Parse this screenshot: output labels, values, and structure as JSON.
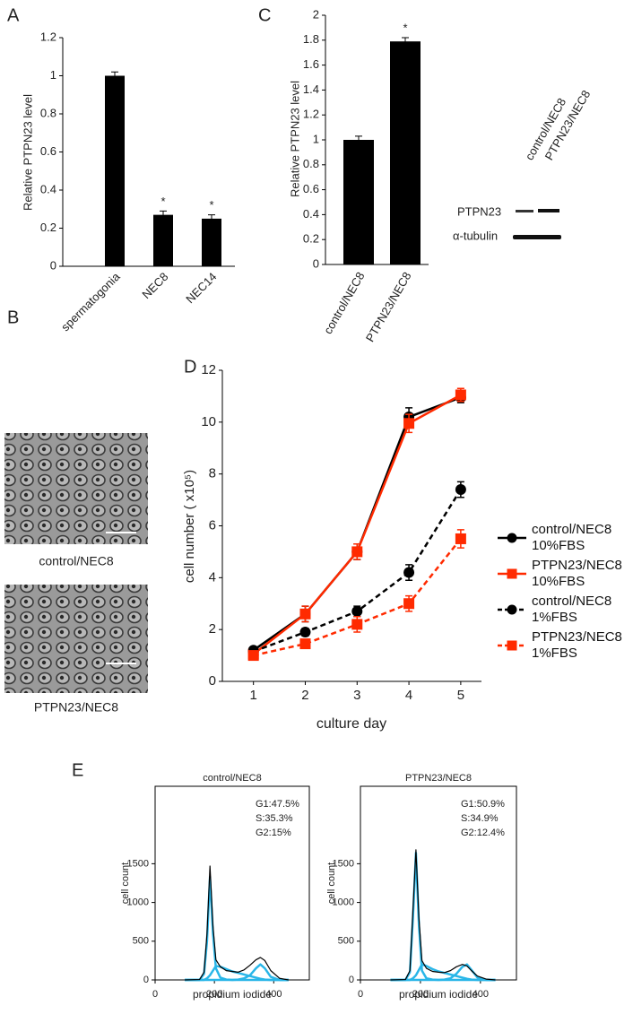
{
  "chart_data": [
    {
      "panel": "A",
      "type": "bar",
      "ylabel": "Relative PTPN23 level",
      "categories": [
        "spermatogonia",
        "NEC8",
        "NEC14"
      ],
      "values": [
        1.0,
        0.27,
        0.25
      ],
      "errors": [
        0.02,
        0.02,
        0.02
      ],
      "annotations": [
        {
          "index": 1,
          "text": "*"
        },
        {
          "index": 2,
          "text": "*"
        }
      ],
      "color": "#000000",
      "ylim": [
        0,
        1.2
      ],
      "yticks": [
        0,
        0.2,
        0.4,
        0.6,
        0.8,
        1,
        1.2
      ]
    },
    {
      "panel": "C",
      "type": "bar",
      "ylabel": "Relative PTPN23 level",
      "categories": [
        "control/NEC8",
        "PTPN23/NEC8"
      ],
      "values": [
        1.0,
        1.79
      ],
      "errors": [
        0.03,
        0.03
      ],
      "annotations": [
        {
          "index": 1,
          "text": "*"
        }
      ],
      "color": "#000000",
      "ylim": [
        0,
        2
      ],
      "yticks": [
        0,
        0.2,
        0.4,
        0.6,
        0.8,
        1,
        1.2,
        1.4,
        1.6,
        1.8,
        2
      ]
    },
    {
      "panel": "D",
      "type": "line",
      "xlabel": "culture day",
      "ylabel": "cell number ( x10⁵)",
      "x": [
        1,
        2,
        3,
        4,
        5
      ],
      "xlim": [
        0.4,
        5.4
      ],
      "xticks": [
        1,
        2,
        3,
        4,
        5
      ],
      "ylim": [
        0,
        12
      ],
      "yticks": [
        0,
        2,
        4,
        6,
        8,
        10,
        12
      ],
      "series": [
        {
          "name": "control/NEC8 10%FBS",
          "color": "#000000",
          "linestyle": "solid",
          "marker": "circle",
          "values": [
            1.2,
            2.6,
            5.0,
            10.2,
            10.95
          ],
          "errors": [
            0.1,
            0.3,
            0.3,
            0.35,
            0.2
          ]
        },
        {
          "name": "PTPN23/NEC8 10%FBS",
          "color": "#ff2a00",
          "linestyle": "solid",
          "marker": "square",
          "values": [
            1.05,
            2.6,
            5.0,
            9.95,
            11.05
          ],
          "errors": [
            0.1,
            0.3,
            0.3,
            0.35,
            0.25
          ]
        },
        {
          "name": "control/NEC8 1%FBS",
          "color": "#000000",
          "linestyle": "dashed",
          "marker": "circle",
          "values": [
            1.15,
            1.9,
            2.7,
            4.2,
            7.4
          ],
          "errors": [
            0.1,
            0.15,
            0.2,
            0.3,
            0.3
          ]
        },
        {
          "name": "PTPN23/NEC8 1%FBS",
          "color": "#ff2a00",
          "linestyle": "dashed",
          "marker": "square",
          "values": [
            1.0,
            1.45,
            2.2,
            3.0,
            5.5
          ],
          "errors": [
            0.1,
            0.15,
            0.3,
            0.3,
            0.35
          ]
        }
      ]
    },
    {
      "panel": "E",
      "type": "line",
      "title": "control/NEC8",
      "xlabel": "propidium iodide",
      "ylabel": "cell count",
      "annotations": [
        "G1:47.5%",
        "S:35.3%",
        "G2:15%"
      ],
      "x": [
        100,
        150,
        165,
        175,
        185,
        195,
        205,
        220,
        240,
        260,
        280,
        300,
        320,
        340,
        355,
        370,
        390,
        420,
        450
      ],
      "xlim": [
        0,
        520
      ],
      "xticks": [
        0,
        200,
        400
      ],
      "ylim": [
        0,
        2500
      ],
      "yticks": [
        0,
        500,
        1000,
        1500
      ],
      "series": [
        {
          "color": "#29b6e8",
          "values": [
            0,
            0,
            80,
            500,
            1330,
            600,
            150,
            30,
            5,
            0,
            0,
            0,
            0,
            0,
            0,
            0,
            0,
            0,
            0
          ]
        },
        {
          "color": "#29b6e8",
          "values": [
            0,
            0,
            0,
            20,
            60,
            120,
            180,
            170,
            140,
            110,
            90,
            70,
            50,
            30,
            15,
            5,
            0,
            0,
            0
          ]
        },
        {
          "color": "#29b6e8",
          "values": [
            0,
            0,
            0,
            0,
            0,
            0,
            0,
            0,
            0,
            0,
            5,
            20,
            60,
            150,
            200,
            150,
            40,
            0,
            0
          ]
        },
        {
          "color": "#000000",
          "values": [
            0,
            5,
            100,
            600,
            1470,
            700,
            260,
            170,
            120,
            110,
            100,
            130,
            190,
            260,
            290,
            250,
            120,
            20,
            0
          ]
        }
      ]
    },
    {
      "panel": "",
      "type": "line",
      "title": "PTPN23/NEC8",
      "xlabel": "propidium iodide",
      "ylabel": "cell count",
      "annotations": [
        "G1:50.9%",
        "S:34.9%",
        "G2:12.4%"
      ],
      "x": [
        100,
        150,
        165,
        175,
        185,
        195,
        205,
        220,
        240,
        260,
        280,
        300,
        320,
        340,
        355,
        370,
        390,
        420,
        450
      ],
      "xlim": [
        0,
        520
      ],
      "xticks": [
        0,
        200,
        400
      ],
      "ylim": [
        0,
        2500
      ],
      "yticks": [
        0,
        500,
        1000,
        1500
      ],
      "series": [
        {
          "color": "#29b6e8",
          "values": [
            0,
            0,
            100,
            800,
            1640,
            700,
            120,
            20,
            5,
            0,
            0,
            0,
            0,
            0,
            0,
            0,
            0,
            0,
            0
          ]
        },
        {
          "color": "#29b6e8",
          "values": [
            0,
            0,
            0,
            20,
            60,
            130,
            200,
            180,
            140,
            110,
            90,
            70,
            50,
            30,
            15,
            5,
            0,
            0,
            0
          ]
        },
        {
          "color": "#29b6e8",
          "values": [
            0,
            0,
            0,
            0,
            0,
            0,
            0,
            0,
            0,
            0,
            5,
            20,
            80,
            170,
            200,
            130,
            30,
            0,
            0
          ]
        },
        {
          "color": "#000000",
          "values": [
            0,
            5,
            120,
            900,
            1680,
            800,
            250,
            150,
            110,
            100,
            95,
            120,
            170,
            200,
            180,
            120,
            50,
            10,
            0
          ]
        }
      ]
    }
  ],
  "blot": {
    "lanes": [
      "control/NEC8",
      "PTPN23/NEC8"
    ],
    "rows": [
      "PTPN23",
      "α-tubulin"
    ]
  },
  "micrographs": {
    "panel": "B",
    "labels": [
      "control/NEC8",
      "PTPN23/NEC8"
    ]
  }
}
